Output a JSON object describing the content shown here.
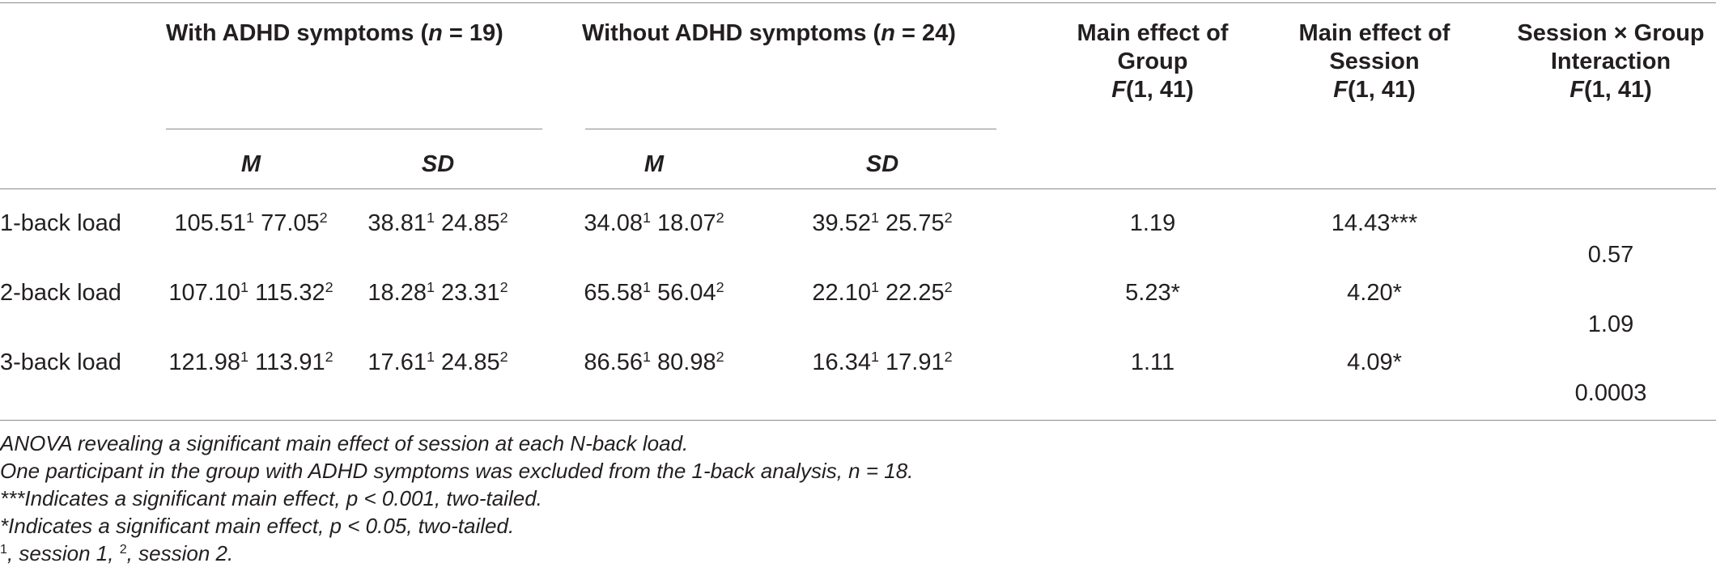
{
  "header": {
    "group_with": {
      "prefix": "With ADHD symptoms (",
      "n_var": "n",
      "suffix": " = 19)"
    },
    "group_without": {
      "prefix": "Without ADHD symptoms (",
      "n_var": "n",
      "suffix": " = 24)"
    },
    "main_group": {
      "line1": "Main effect of",
      "line2": "Group",
      "stat_letter": "F",
      "stat_df": "(1, 41)"
    },
    "main_session": {
      "line1": "Main effect of",
      "line2": "Session",
      "stat_letter": "F",
      "stat_df": "(1, 41)"
    },
    "interaction": {
      "line1": "Session × Group",
      "line2": "Interaction",
      "stat_letter": "F",
      "stat_df": "(1, 41)"
    },
    "m": "M",
    "sd": "SD"
  },
  "rows": [
    {
      "label": "1-back load",
      "with_m": {
        "v1": "105.51",
        "s1": "1",
        "v2": "77.05",
        "s2": "2"
      },
      "with_sd": {
        "v1": "38.81",
        "s1": "1",
        "v2": "24.85",
        "s2": "2"
      },
      "without_m": {
        "v1": "34.08",
        "s1": "1",
        "v2": "18.07",
        "s2": "2"
      },
      "without_sd": {
        "v1": "39.52",
        "s1": "1",
        "v2": "25.75",
        "s2": "2"
      },
      "group": "1.19",
      "session": "14.43***",
      "interaction": "0.57"
    },
    {
      "label": "2-back load",
      "with_m": {
        "v1": "107.10",
        "s1": "1",
        "v2": "115.32",
        "s2": "2"
      },
      "with_sd": {
        "v1": "18.28",
        "s1": "1",
        "v2": "23.31",
        "s2": "2"
      },
      "without_m": {
        "v1": "65.58",
        "s1": "1",
        "v2": "56.04",
        "s2": "2"
      },
      "without_sd": {
        "v1": "22.10",
        "s1": "1",
        "v2": "22.25",
        "s2": "2"
      },
      "group": "5.23*",
      "session": "4.20*",
      "interaction": "1.09"
    },
    {
      "label": "3-back load",
      "with_m": {
        "v1": "121.98",
        "s1": "1",
        "v2": "113.91",
        "s2": "2"
      },
      "with_sd": {
        "v1": "17.61",
        "s1": "1",
        "v2": "24.85",
        "s2": "2"
      },
      "without_m": {
        "v1": "86.56",
        "s1": "1",
        "v2": "80.98",
        "s2": "2"
      },
      "without_sd": {
        "v1": "16.34",
        "s1": "1",
        "v2": "17.91",
        "s2": "2"
      },
      "group": "1.11",
      "session": "4.09*",
      "interaction": "0.0003"
    }
  ],
  "footnotes": {
    "anova": "ANOVA revealing a significant main effect of session at each N-back load.",
    "excluded": "One participant in the group with ADHD symptoms was excluded from the 1-back analysis, n = 18.",
    "sig_001": "***Indicates a significant main effect, p < 0.001, two-tailed.",
    "sig_05": "*Indicates a significant main effect, p < 0.05, two-tailed.",
    "session_key": {
      "sup1": "1",
      "text1": ", session 1, ",
      "sup2": "2",
      "text2": ", session 2."
    }
  }
}
